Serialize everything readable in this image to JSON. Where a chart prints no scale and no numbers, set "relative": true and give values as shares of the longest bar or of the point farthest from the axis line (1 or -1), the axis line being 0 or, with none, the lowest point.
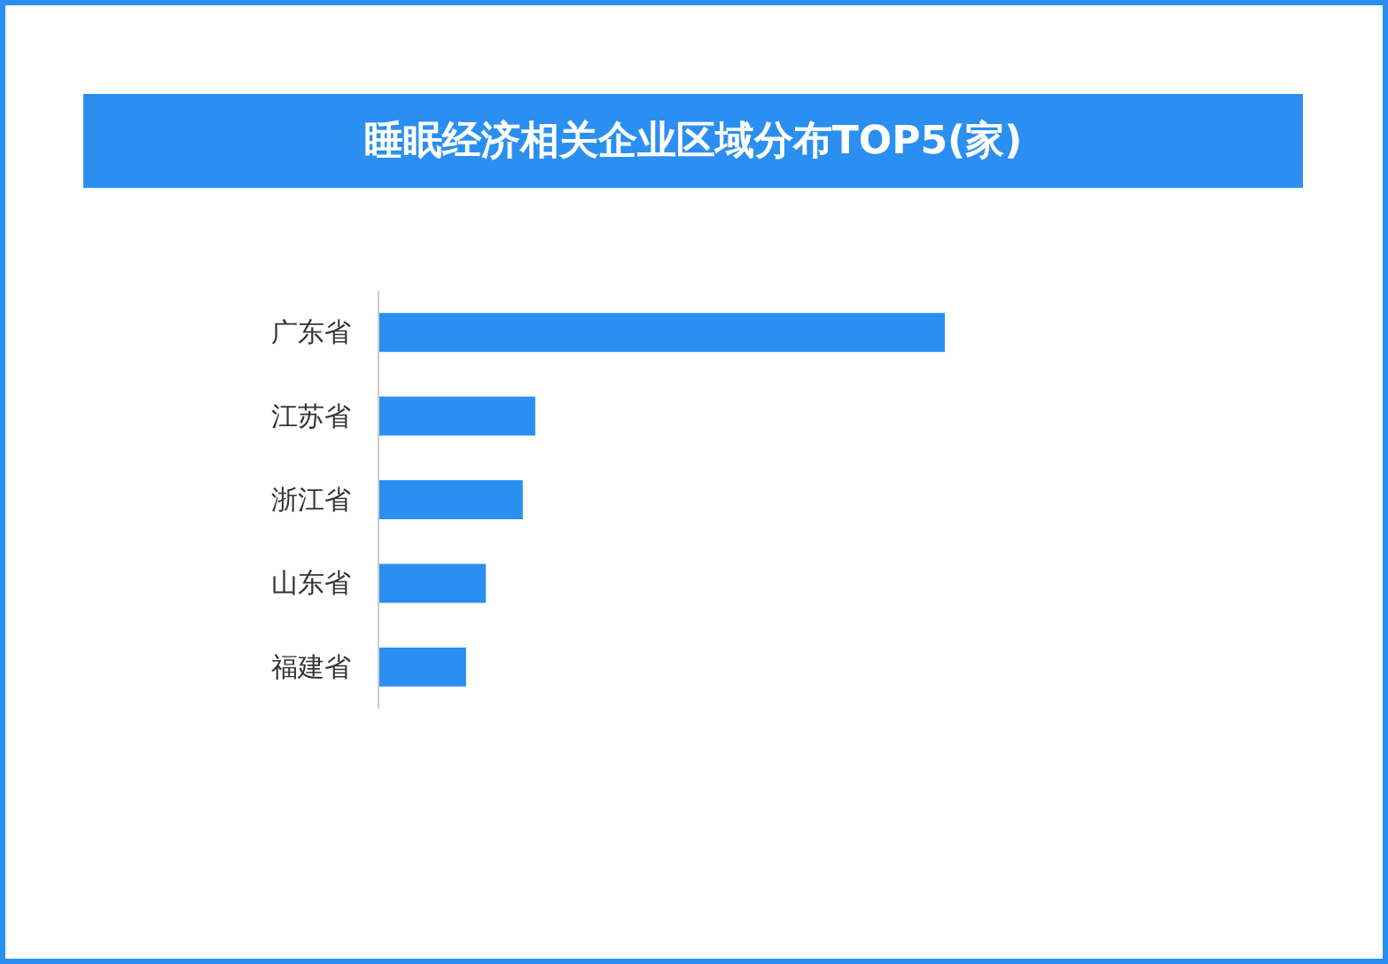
{
  "chart_data": {
    "type": "bar",
    "orientation": "horizontal",
    "relative": true,
    "title": "睡眠经济相关企业区域分布TOP5(家)",
    "categories": [
      "广东省",
      "江苏省",
      "浙江省",
      "山东省",
      "福建省"
    ],
    "values": [
      1,
      0.278,
      0.256,
      0.191,
      0.156
    ],
    "color": "#2b8ff2"
  }
}
